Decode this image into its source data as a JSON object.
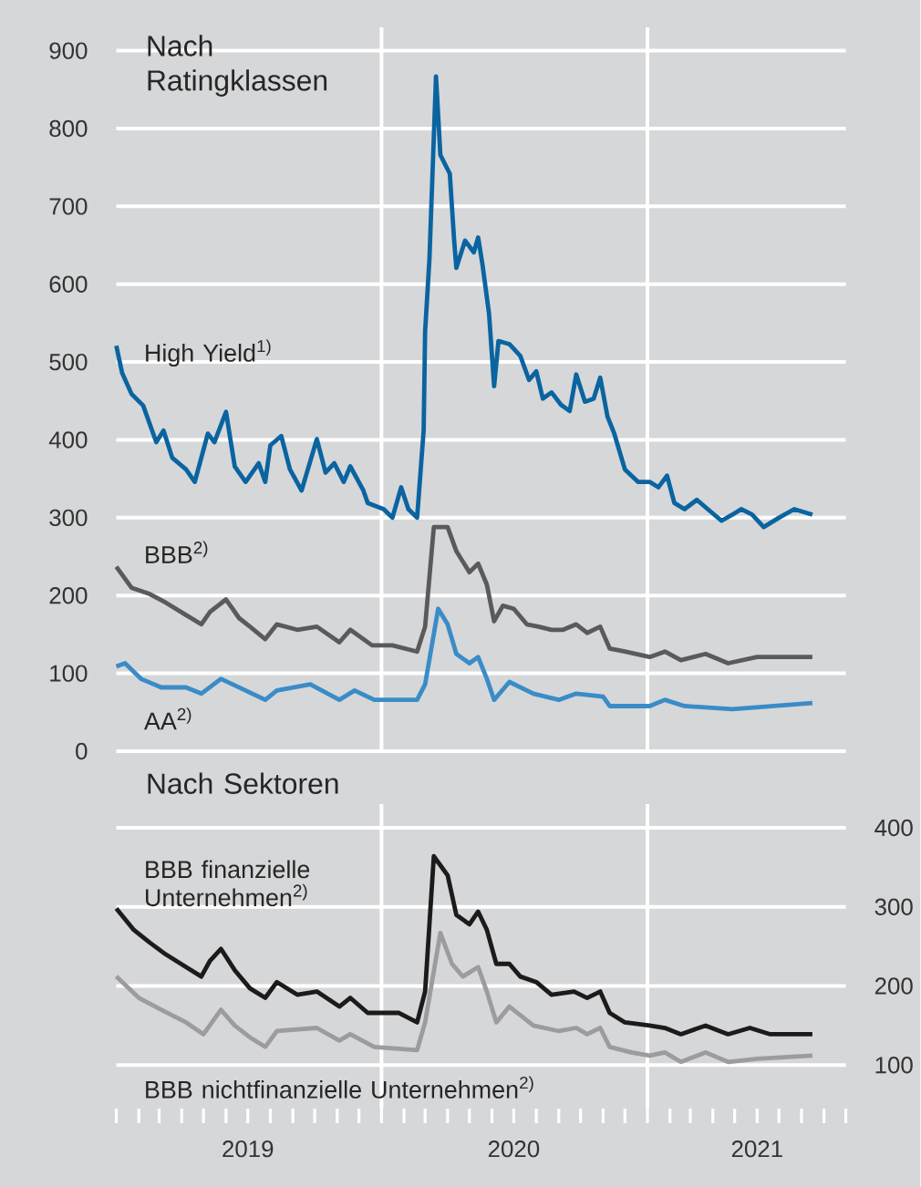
{
  "chart_data": [
    {
      "type": "line",
      "title": "Nach Ratingklassen",
      "xlim": [
        "2019-01-01",
        "2021-10-01"
      ],
      "ylim": [
        0,
        930
      ],
      "yticks": [
        0,
        100,
        200,
        300,
        400,
        500,
        600,
        700,
        800,
        900
      ],
      "grid": "y",
      "legend": false,
      "tick_labels": "y",
      "ref_lines": [
        {
          "axis": "x",
          "value": "2020-01-01",
          "color": "#ffffff"
        },
        {
          "axis": "x",
          "value": "2021-01-01",
          "color": "#ffffff"
        }
      ],
      "series": [
        {
          "name": "High Yield$^{1)}$",
          "color": "#0a64a0",
          "x": [
            "2019-01-01",
            "2019-01-09",
            "2019-01-22",
            "2019-02-07",
            "2019-02-25",
            "2019-03-07",
            "2019-03-19",
            "2019-04-07",
            "2019-04-19",
            "2019-05-07",
            "2019-05-16",
            "2019-06-01",
            "2019-06-13",
            "2019-06-28",
            "2019-07-16",
            "2019-07-25",
            "2019-08-01",
            "2019-08-16",
            "2019-08-28",
            "2019-09-13",
            "2019-10-04",
            "2019-10-16",
            "2019-10-28",
            "2019-11-10",
            "2019-11-19",
            "2019-12-07",
            "2019-12-13",
            "2020-01-04",
            "2020-01-16",
            "2020-01-28",
            "2020-02-07",
            "2020-02-19",
            "2020-02-28",
            "2020-03-01",
            "2020-03-07",
            "2020-03-16",
            "2020-03-22",
            "2020-04-04",
            "2020-04-10",
            "2020-04-13",
            "2020-04-25",
            "2020-05-07",
            "2020-05-13",
            "2020-05-19",
            "2020-05-28",
            "2020-06-04",
            "2020-06-10",
            "2020-06-25",
            "2020-07-10",
            "2020-07-22",
            "2020-08-01",
            "2020-08-10",
            "2020-08-22",
            "2020-09-04",
            "2020-09-16",
            "2020-09-25",
            "2020-10-07",
            "2020-10-19",
            "2020-10-28",
            "2020-11-07",
            "2020-11-16",
            "2020-12-01",
            "2020-12-19",
            "2021-01-04",
            "2021-01-16",
            "2021-01-28",
            "2021-02-07",
            "2021-02-21",
            "2021-03-10",
            "2021-03-25",
            "2021-04-13",
            "2021-04-28",
            "2021-05-10",
            "2021-05-25",
            "2021-06-10",
            "2021-07-01",
            "2021-07-22",
            "2021-08-16"
          ],
          "values": [
            521,
            486,
            459,
            444,
            397,
            412,
            377,
            362,
            346,
            408,
            397,
            436,
            366,
            346,
            370,
            346,
            393,
            405,
            362,
            335,
            401,
            358,
            370,
            346,
            366,
            335,
            319,
            311,
            300,
            339,
            311,
            300,
            412,
            539,
            633,
            867,
            766,
            742,
            656,
            621,
            656,
            641,
            660,
            625,
            562,
            469,
            527,
            523,
            508,
            477,
            488,
            453,
            461,
            445,
            437,
            484,
            449,
            453,
            480,
            430,
            409,
            362,
            346,
            346,
            339,
            354,
            319,
            311,
            323,
            311,
            296,
            304,
            311,
            304,
            288,
            300,
            311,
            304
          ]
        },
        {
          "name": "BBB$^{2)}$",
          "color": "#5a5a5c",
          "x": [
            "2019-01-01",
            "2019-01-22",
            "2019-02-16",
            "2019-03-10",
            "2019-04-07",
            "2019-04-28",
            "2019-05-10",
            "2019-06-01",
            "2019-06-19",
            "2019-07-04",
            "2019-07-25",
            "2019-08-10",
            "2019-09-07",
            "2019-10-04",
            "2019-11-04",
            "2019-11-19",
            "2019-12-19",
            "2020-01-16",
            "2020-02-19",
            "2020-03-01",
            "2020-03-13",
            "2020-04-01",
            "2020-04-13",
            "2020-05-01",
            "2020-05-13",
            "2020-05-25",
            "2020-06-04",
            "2020-06-16",
            "2020-07-01",
            "2020-07-19",
            "2020-08-04",
            "2020-08-22",
            "2020-09-07",
            "2020-09-25",
            "2020-10-10",
            "2020-10-28",
            "2020-11-10",
            "2020-12-01",
            "2021-01-04",
            "2021-01-25",
            "2021-02-16",
            "2021-03-22",
            "2021-04-22",
            "2021-06-01",
            "2021-08-16"
          ],
          "values": [
            237,
            210,
            202,
            191,
            175,
            163,
            179,
            195,
            171,
            160,
            144,
            163,
            156,
            160,
            140,
            156,
            136,
            136,
            128,
            160,
            288,
            288,
            257,
            230,
            241,
            214,
            167,
            187,
            183,
            163,
            160,
            156,
            156,
            163,
            152,
            160,
            132,
            128,
            121,
            128,
            117,
            125,
            113,
            121,
            121
          ]
        },
        {
          "name": "AA$^{2)}$",
          "color": "#3a8cc8",
          "x": [
            "2019-01-01",
            "2019-01-13",
            "2019-02-04",
            "2019-03-04",
            "2019-04-07",
            "2019-04-28",
            "2019-05-25",
            "2019-06-28",
            "2019-07-25",
            "2019-08-10",
            "2019-09-25",
            "2019-11-04",
            "2019-11-25",
            "2019-12-22",
            "2020-02-19",
            "2020-03-01",
            "2020-03-19",
            "2020-04-01",
            "2020-04-13",
            "2020-05-01",
            "2020-05-13",
            "2020-05-25",
            "2020-06-04",
            "2020-06-25",
            "2020-07-28",
            "2020-09-01",
            "2020-09-25",
            "2020-11-01",
            "2020-11-10",
            "2021-01-04",
            "2021-01-25",
            "2021-02-21",
            "2021-04-28",
            "2021-08-16"
          ],
          "values": [
            109,
            113,
            93,
            82,
            82,
            74,
            93,
            78,
            66,
            78,
            86,
            66,
            78,
            66,
            66,
            86,
            183,
            163,
            125,
            113,
            121,
            93,
            66,
            89,
            74,
            66,
            74,
            70,
            58,
            58,
            66,
            58,
            54,
            62
          ]
        }
      ]
    },
    {
      "type": "line",
      "title": "Nach Sektoren",
      "xlim": [
        "2019-01-01",
        "2021-10-01"
      ],
      "y2lim": [
        45,
        430
      ],
      "y2ticks": [
        100,
        200,
        300,
        400
      ],
      "grid": "y",
      "legend": false,
      "xticks": [
        {
          "value": "2019-01-01",
          "label": null
        },
        {
          "value": "2019-02-01",
          "label": null
        },
        {
          "value": "2019-03-01",
          "label": null
        },
        {
          "value": "2019-04-01",
          "label": null
        },
        {
          "value": "2019-05-01",
          "label": null
        },
        {
          "value": "2019-06-01",
          "label": null
        },
        {
          "value": "2019-07-01",
          "label": "2019"
        },
        {
          "value": "2019-08-01",
          "label": null
        },
        {
          "value": "2019-09-01",
          "label": null
        },
        {
          "value": "2019-10-01",
          "label": null
        },
        {
          "value": "2019-11-01",
          "label": null
        },
        {
          "value": "2019-12-01",
          "label": null
        },
        {
          "value": "2020-01-01",
          "label": null
        },
        {
          "value": "2020-02-01",
          "label": null
        },
        {
          "value": "2020-03-01",
          "label": null
        },
        {
          "value": "2020-04-01",
          "label": null
        },
        {
          "value": "2020-05-01",
          "label": null
        },
        {
          "value": "2020-06-01",
          "label": null
        },
        {
          "value": "2020-07-01",
          "label": "2020"
        },
        {
          "value": "2020-08-01",
          "label": null
        },
        {
          "value": "2020-09-01",
          "label": null
        },
        {
          "value": "2020-10-01",
          "label": null
        },
        {
          "value": "2020-11-01",
          "label": null
        },
        {
          "value": "2020-12-01",
          "label": null
        },
        {
          "value": "2021-01-01",
          "label": null
        },
        {
          "value": "2021-02-01",
          "label": null
        },
        {
          "value": "2021-03-01",
          "label": null
        },
        {
          "value": "2021-04-01",
          "label": null
        },
        {
          "value": "2021-05-01",
          "label": null
        },
        {
          "value": "2021-06-01",
          "label": "2021"
        },
        {
          "value": "2021-07-01",
          "label": null
        },
        {
          "value": "2021-08-01",
          "label": null
        },
        {
          "value": "2021-09-01",
          "label": null
        },
        {
          "value": "2021-10-01",
          "label": null
        }
      ],
      "ref_lines": [
        {
          "axis": "x",
          "value": "2020-01-01",
          "color": "#ffffff"
        },
        {
          "axis": "x",
          "value": "2021-01-01",
          "color": "#ffffff"
        }
      ],
      "series": [
        {
          "name": "BBB finanzielle Unternehmen$^{2)}$",
          "color": "#1c1a1a",
          "axis": "y2",
          "x": [
            "2019-01-01",
            "2019-01-25",
            "2019-02-16",
            "2019-03-10",
            "2019-04-07",
            "2019-04-28",
            "2019-05-10",
            "2019-05-25",
            "2019-06-13",
            "2019-07-04",
            "2019-07-25",
            "2019-08-10",
            "2019-09-07",
            "2019-10-04",
            "2019-11-04",
            "2019-11-19",
            "2019-12-13",
            "2020-01-25",
            "2020-02-19",
            "2020-03-01",
            "2020-03-13",
            "2020-04-01",
            "2020-04-13",
            "2020-05-01",
            "2020-05-13",
            "2020-05-25",
            "2020-06-07",
            "2020-06-25",
            "2020-07-10",
            "2020-08-01",
            "2020-08-22",
            "2020-09-22",
            "2020-10-10",
            "2020-10-28",
            "2020-11-10",
            "2020-12-01",
            "2021-01-04",
            "2021-01-25",
            "2021-02-16",
            "2021-03-22",
            "2021-04-22",
            "2021-05-22",
            "2021-06-19",
            "2021-08-16"
          ],
          "values": [
            298,
            271,
            255,
            240,
            224,
            212,
            232,
            247,
            220,
            197,
            185,
            205,
            189,
            193,
            174,
            185,
            166,
            166,
            154,
            193,
            364,
            340,
            290,
            278,
            294,
            271,
            228,
            228,
            212,
            205,
            189,
            193,
            185,
            193,
            166,
            154,
            150,
            147,
            139,
            150,
            139,
            147,
            139,
            139
          ]
        },
        {
          "name": "BBB nichtfinanzielle Unternehmen$^{2)}$",
          "color": "#9c9c9e",
          "axis": "y2",
          "x": [
            "2019-01-01",
            "2019-02-01",
            "2019-03-04",
            "2019-04-07",
            "2019-05-01",
            "2019-05-25",
            "2019-06-13",
            "2019-07-04",
            "2019-07-25",
            "2019-08-10",
            "2019-10-04",
            "2019-11-04",
            "2019-11-19",
            "2019-12-22",
            "2020-02-19",
            "2020-03-01",
            "2020-03-22",
            "2020-04-07",
            "2020-04-22",
            "2020-05-13",
            "2020-05-25",
            "2020-06-07",
            "2020-06-25",
            "2020-07-28",
            "2020-09-01",
            "2020-09-25",
            "2020-10-10",
            "2020-10-28",
            "2020-11-10",
            "2020-12-10",
            "2021-01-04",
            "2021-01-25",
            "2021-02-16",
            "2021-03-22",
            "2021-04-22",
            "2021-06-01",
            "2021-08-16"
          ],
          "values": [
            212,
            185,
            170,
            154,
            139,
            170,
            150,
            135,
            123,
            143,
            147,
            131,
            139,
            123,
            119,
            154,
            267,
            228,
            212,
            224,
            193,
            154,
            174,
            150,
            143,
            147,
            139,
            147,
            123,
            116,
            112,
            116,
            104,
            116,
            104,
            108,
            112
          ]
        }
      ]
    }
  ]
}
